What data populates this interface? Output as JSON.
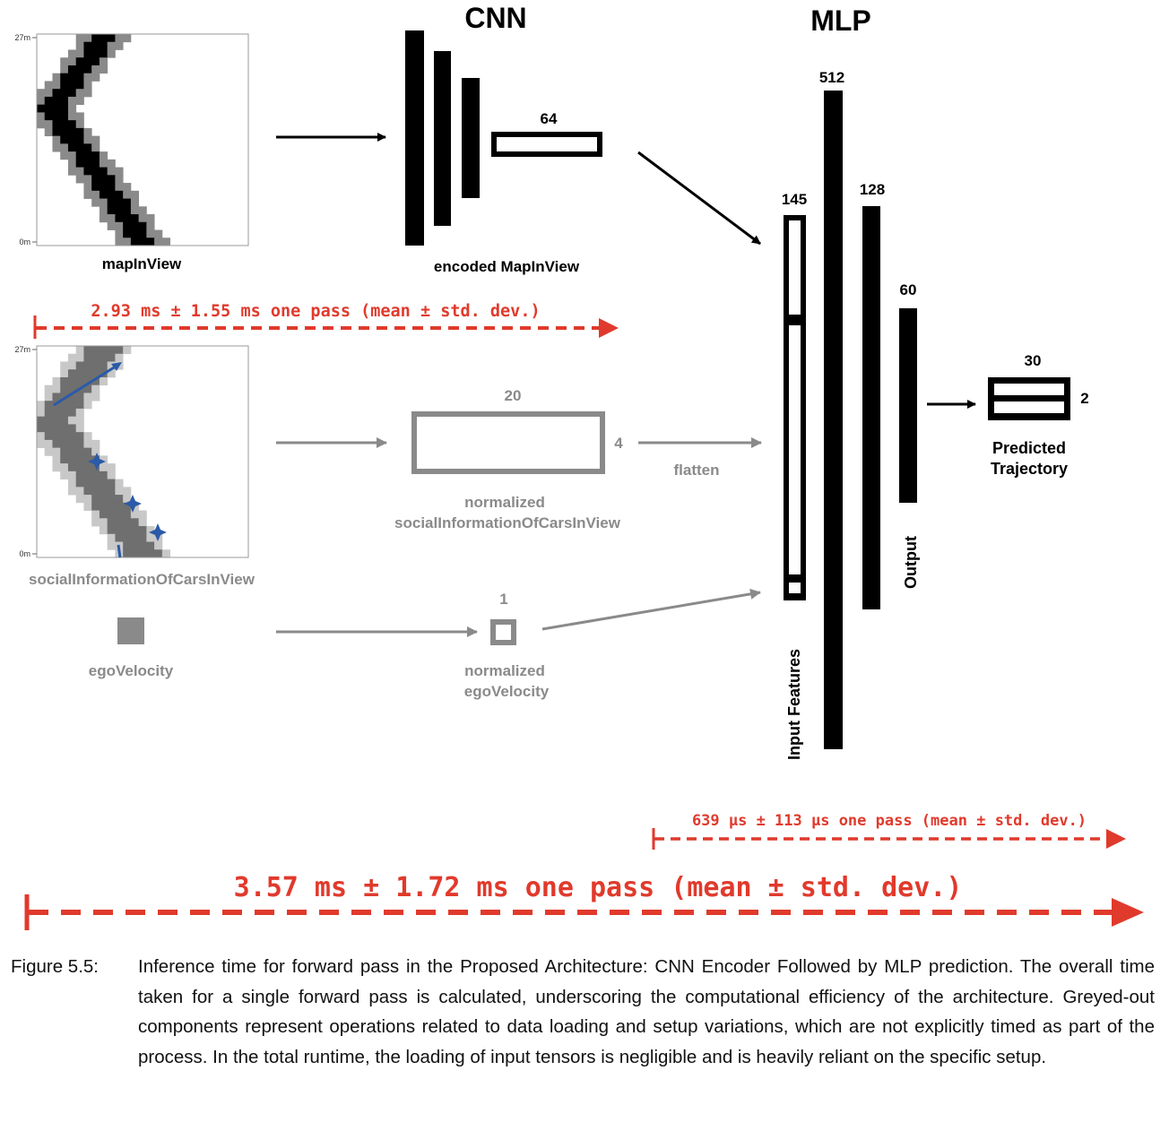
{
  "titles": {
    "cnn": "CNN",
    "mlp": "MLP"
  },
  "map_plot": {
    "ytick_top": "27m",
    "ytick_bottom": "0m",
    "label": "mapInView"
  },
  "social_plot": {
    "ytick_top": "27m",
    "ytick_bottom": "0m",
    "label": "socialInformationOfCarsInView"
  },
  "ego": {
    "label": "egoVelocity"
  },
  "cnn": {
    "output_size": "64",
    "label": "encoded MapInView"
  },
  "social_tensor": {
    "width": "20",
    "height": "4",
    "label_line1": "normalized",
    "label_line2": "socialInformationOfCarsInView",
    "op": "flatten"
  },
  "ego_tensor": {
    "size": "1",
    "label_line1": "normalized",
    "label_line2": "egoVelocity"
  },
  "mlp": {
    "input_size": "145",
    "input_label": "Input Features",
    "hidden1_size": "512",
    "hidden2_size": "128",
    "output_size": "60",
    "output_label": "Output"
  },
  "prediction": {
    "rows": "30",
    "cols": "2",
    "label_line1": "Predicted",
    "label_line2": "Trajectory"
  },
  "timings": {
    "cnn": "2.93 ms ± 1.55 ms one pass (mean ± std. dev.)",
    "mlp": "639 µs ± 113 µs one pass (mean ± std. dev.)",
    "total": "3.57 ms ± 1.72 ms one pass (mean ± std. dev.)"
  },
  "colors": {
    "black": "#000000",
    "grey": "#8a8a8a",
    "light_grey": "#c8c8c8",
    "red": "#e03a2c",
    "blue": "#2a5aa8"
  },
  "caption": {
    "label": "Figure 5.5:",
    "text": "Inference time for forward pass in the Proposed Architecture: CNN Encoder Followed by MLP prediction. The overall time taken for a single forward pass is calculated, underscoring the computational efficiency of the architecture. Greyed-out components represent operations related to data loading and setup variations, which are not explicitly timed as part of the process. In the total runtime, the loading of input tensors is negligible and is heavily reliant on the specific setup."
  }
}
